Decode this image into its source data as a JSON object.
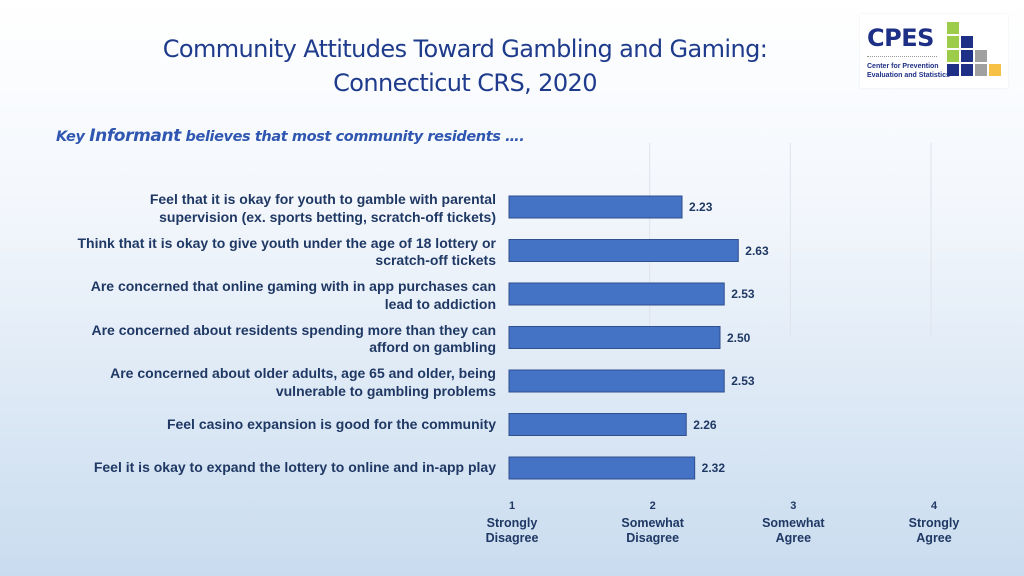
{
  "title_line1": "Community Attitudes Toward Gambling and Gaming:",
  "title_line2": "Connecticut CRS, 2020",
  "subtitle": {
    "prefix": "Key ",
    "emph": "Informant",
    "rest": " believes that most community residents …."
  },
  "logo": {
    "word": "CPES",
    "sub1": "Center for Prevention",
    "sub2": "Evaluation and Statistics",
    "colors": [
      "#9ccc4a",
      "#1e2f86",
      "#a0a0a0",
      "#f6c144"
    ]
  },
  "chart_data": {
    "type": "bar",
    "orientation": "horizontal",
    "xlim": [
      1,
      4
    ],
    "bar_color": "#4472c4",
    "categories": [
      "Feel that it is okay for youth to gamble with parental supervision (ex. sports betting, scratch-off tickets)",
      "Think that it is okay to give youth under the age of 18 lottery or scratch-off tickets",
      "Are concerned that online gaming with in app purchases can lead to addiction",
      "Are concerned about residents spending more than they can afford on gambling",
      "Are concerned about older adults, age 65 and older, being vulnerable to gambling problems",
      "Feel casino expansion is good for the community",
      "Feel it is okay to expand the lottery to online and in-app play"
    ],
    "values": [
      2.23,
      2.63,
      2.53,
      2.5,
      2.53,
      2.26,
      2.32
    ],
    "value_labels": [
      "2.23",
      "2.63",
      "2.53",
      "2.50",
      "2.53",
      "2.26",
      "2.32"
    ],
    "ticks": [
      {
        "value": 1,
        "num": "1",
        "line1": "Strongly",
        "line2": "Disagree"
      },
      {
        "value": 2,
        "num": "2",
        "line1": "Somewhat",
        "line2": "Disagree"
      },
      {
        "value": 3,
        "num": "3",
        "line1": "Somewhat",
        "line2": "Agree"
      },
      {
        "value": 4,
        "num": "4",
        "line1": "Strongly",
        "line2": "Agree"
      }
    ],
    "grid": true
  }
}
